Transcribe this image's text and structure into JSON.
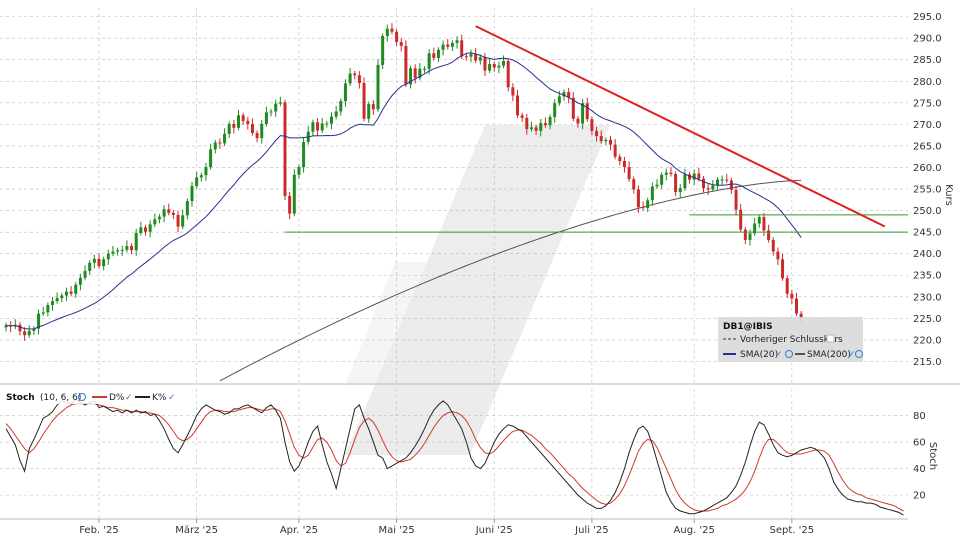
{
  "chart_data": [
    {
      "type": "candlestick",
      "ylabel": "Kurs",
      "ylim": [
        210,
        297
      ],
      "yticks": [
        215,
        220,
        225,
        230,
        235,
        240,
        245,
        250,
        255,
        260,
        265,
        270,
        275,
        280,
        285,
        290,
        295
      ],
      "ytick_labels": [
        "215.0",
        "220.0",
        "225.0",
        "230.0",
        "235.0",
        "240.0",
        "245.0",
        "250.0",
        "255.0",
        "260.0",
        "265.0",
        "270.0",
        "275.0",
        "280.0",
        "285.0",
        "290.0",
        "295.0"
      ],
      "grid": true,
      "legend": {
        "placement": "bottom-right",
        "title": "DB1@IBIS",
        "entries": [
          "Vorheriger Schlusskurs",
          "SMA(20)",
          "SMA(200)"
        ]
      },
      "colors": {
        "up": "#1f8a1f",
        "down": "#cc2a2a",
        "sma20": "#2a2e8c",
        "sma200": "#555555",
        "trendline": "#e02020",
        "support": "#2f9a2f"
      },
      "closes": [
        223.4,
        223.1,
        223.5,
        222.0,
        221.1,
        222.1,
        222.6,
        226.1,
        226.4,
        228.1,
        229.0,
        229.7,
        230.3,
        231.2,
        230.7,
        232.8,
        234.4,
        236.0,
        237.9,
        238.8,
        237.1,
        238.7,
        240.0,
        240.5,
        240.8,
        240.9,
        241.8,
        240.8,
        244.8,
        246.1,
        245.1,
        246.8,
        248.0,
        248.6,
        250.3,
        249.5,
        249.0,
        246.3,
        248.9,
        252.2,
        255.7,
        257.7,
        258.2,
        260.1,
        264.2,
        265.8,
        265.6,
        267.8,
        270.1,
        269.2,
        272.1,
        270.8,
        270.1,
        268.0,
        266.8,
        270.1,
        272.8,
        273.0,
        274.8,
        275.1,
        253.4,
        249.3,
        258.3,
        260.1,
        265.9,
        268.3,
        270.5,
        268.6,
        270.2,
        270.2,
        271.8,
        273.0,
        275.4,
        279.5,
        281.8,
        281.4,
        279.6,
        271.3,
        274.7,
        273.5,
        283.8,
        290.5,
        292.2,
        291.5,
        289.1,
        288.2,
        279.3,
        283.0,
        280.8,
        282.9,
        282.9,
        286.5,
        285.4,
        287.3,
        288.5,
        288.0,
        288.9,
        289.5,
        285.8,
        285.7,
        286.4,
        284.8,
        285.6,
        282.5,
        284.0,
        283.2,
        283.6,
        284.7,
        278.6,
        276.7,
        272.1,
        271.5,
        268.9,
        269.3,
        268.5,
        270.3,
        269.8,
        271.7,
        274.9,
        276.5,
        277.5,
        276.2,
        271.3,
        270.2,
        274.9,
        271.2,
        268.5,
        267.3,
        266.1,
        266.4,
        265.3,
        262.5,
        261.5,
        260.1,
        257.3,
        254.9,
        250.8,
        250.6,
        252.4,
        255.6,
        256.0,
        258.3,
        258.8,
        258.5,
        254.3,
        255.2,
        258.4,
        257.2,
        258.6,
        257.4,
        255.2,
        254.9,
        255.8,
        257.2,
        257.2,
        257.0,
        254.8,
        250.2,
        245.6,
        243.2,
        244.7,
        247.0,
        248.5,
        245.4,
        243.2,
        240.5,
        238.7,
        234.3,
        230.7,
        229.6,
        226.1,
        224.9
      ],
      "x_labels": [
        "Feb. '25",
        "März '25",
        "Apr. '25",
        "Mai '25",
        "Juni '25",
        "Juli '25",
        "Aug. '25",
        "Sept. '25"
      ],
      "x_label_index": [
        20,
        41,
        63,
        84,
        105,
        126,
        148,
        169
      ],
      "trendline": {
        "from": [
          101,
          292.8
        ],
        "to": [
          189,
          246.3
        ]
      },
      "support_levels": [
        245.0,
        249.0
      ]
    },
    {
      "type": "line",
      "title": "Stoch",
      "params": "(10, 6, 6)",
      "legend": {
        "placement": "top-left",
        "entries": [
          "D%",
          "K%"
        ]
      },
      "ylim": [
        2,
        100
      ],
      "yticks": [
        20,
        40,
        60,
        80
      ],
      "ytick_labels": [
        "20",
        "40",
        "60",
        "80"
      ],
      "ylabel": "Stoch",
      "grid": true,
      "colors": {
        "k": "#222222",
        "d": "#d23a2a"
      },
      "k": [
        70.0,
        64.0,
        58.0,
        46.0,
        38.0,
        55.0,
        62.0,
        70.0,
        78.0,
        80.0,
        83.0,
        88.0,
        91.0,
        90.0,
        89.0,
        92.0,
        90.0,
        88.0,
        90.0,
        91.0,
        86.0,
        87.0,
        85.0,
        83.0,
        84.0,
        82.0,
        84.0,
        82.0,
        84.0,
        82.0,
        83.0,
        80.0,
        81.0,
        76.0,
        70.0,
        62.0,
        55.0,
        52.0,
        58.0,
        65.0,
        72.0,
        80.0,
        85.0,
        88.0,
        86.0,
        84.0,
        83.0,
        81.0,
        82.0,
        85.0,
        85.0,
        87.0,
        88.0,
        86.0,
        84.0,
        82.0,
        86.0,
        88.0,
        84.0,
        78.0,
        60.0,
        45.0,
        38.0,
        42.0,
        50.0,
        60.0,
        68.0,
        72.0,
        58.0,
        45.0,
        36.0,
        25.0,
        40.0,
        55.0,
        70.0,
        85.0,
        88.0,
        78.0,
        70.0,
        60.0,
        50.0,
        48.0,
        40.0,
        42.0,
        44.0,
        46.0,
        48.0,
        52.0,
        57.0,
        63.0,
        70.0,
        78.0,
        84.0,
        88.0,
        91.0,
        88.0,
        82.0,
        76.0,
        70.0,
        60.0,
        48.0,
        42.0,
        40.0,
        44.0,
        52.0,
        60.0,
        66.0,
        70.0,
        73.0,
        72.0,
        70.0,
        68.0,
        64.0,
        60.0,
        56.0,
        52.0,
        48.0,
        44.0,
        40.0,
        36.0,
        32.0,
        28.0,
        24.0,
        20.0,
        17.0,
        14.0,
        12.0,
        10.0,
        10.0,
        12.0,
        16.0,
        22.0,
        30.0,
        40.0,
        52.0,
        62.0,
        70.0,
        72.0,
        68.0,
        58.0,
        46.0,
        34.0,
        22.0,
        15.0,
        10.0,
        8.0,
        7.0,
        6.0,
        6.0,
        7.0,
        8.0,
        10.0,
        12.0,
        14.0,
        16.0,
        18.0,
        22.0,
        27.0,
        35.0,
        45.0,
        57.0,
        68.0,
        75.0,
        73.0,
        66.0,
        58.0,
        52.0,
        50.0,
        49.0,
        50.0,
        52.0,
        54.0,
        55.0,
        56.0,
        55.0,
        52.0,
        48.0,
        40.0,
        30.0,
        24.0,
        20.0,
        17.0,
        16.0,
        15.0,
        15.0,
        14.0,
        14.0,
        13.0,
        11.0,
        10.0,
        9.0,
        8.0,
        7.0,
        5.0
      ],
      "d": [
        74.0,
        70.0,
        65.0,
        60.0,
        55.0,
        52.0,
        55.0,
        60.0,
        66.0,
        71.0,
        76.0,
        80.0,
        83.0,
        86.0,
        88.0,
        89.0,
        89.0,
        89.0,
        89.0,
        89.0,
        88.0,
        87.0,
        86.0,
        86.0,
        85.0,
        84.0,
        84.0,
        83.0,
        83.0,
        83.0,
        82.0,
        82.0,
        81.0,
        80.0,
        77.0,
        73.0,
        68.0,
        63.0,
        61.0,
        62.0,
        65.0,
        70.0,
        75.0,
        80.0,
        83.0,
        84.0,
        84.0,
        83.0,
        83.0,
        83.0,
        84.0,
        85.0,
        86.0,
        86.0,
        85.0,
        84.0,
        84.0,
        85.0,
        85.0,
        83.0,
        76.0,
        66.0,
        56.0,
        50.0,
        48.0,
        50.0,
        56.0,
        62.0,
        63.0,
        60.0,
        54.0,
        46.0,
        42.0,
        44.0,
        52.0,
        62.0,
        71.0,
        76.0,
        78.0,
        75.0,
        69.0,
        61.0,
        54.0,
        49.0,
        46.0,
        45.0,
        46.0,
        47.0,
        50.0,
        54.0,
        59.0,
        65.0,
        71.0,
        76.0,
        80.0,
        82.0,
        83.0,
        82.0,
        80.0,
        76.0,
        70.0,
        62.0,
        56.0,
        52.0,
        51.0,
        53.0,
        57.0,
        61.0,
        65.0,
        68.0,
        69.0,
        69.0,
        67.0,
        65.0,
        62.0,
        59.0,
        55.0,
        52.0,
        48.0,
        44.0,
        40.0,
        36.0,
        33.0,
        29.0,
        25.0,
        22.0,
        19.0,
        16.0,
        14.0,
        13.0,
        14.0,
        17.0,
        21.0,
        27.0,
        35.0,
        44.0,
        53.0,
        59.0,
        62.0,
        61.0,
        56.0,
        48.0,
        40.0,
        32.0,
        24.0,
        18.0,
        14.0,
        11.0,
        9.0,
        8.0,
        8.0,
        8.0,
        9.0,
        10.0,
        12.0,
        13.0,
        15.0,
        17.0,
        20.0,
        24.0,
        30.0,
        38.0,
        48.0,
        57.0,
        62.0,
        62.0,
        59.0,
        55.0,
        52.0,
        51.0,
        51.0,
        51.0,
        52.0,
        53.0,
        54.0,
        54.0,
        53.0,
        50.0,
        44.0,
        37.0,
        31.0,
        26.0,
        23.0,
        21.0,
        20.0,
        18.0,
        17.0,
        16.0,
        15.0,
        14.0,
        13.0,
        12.0,
        10.0,
        8.0
      ]
    }
  ]
}
